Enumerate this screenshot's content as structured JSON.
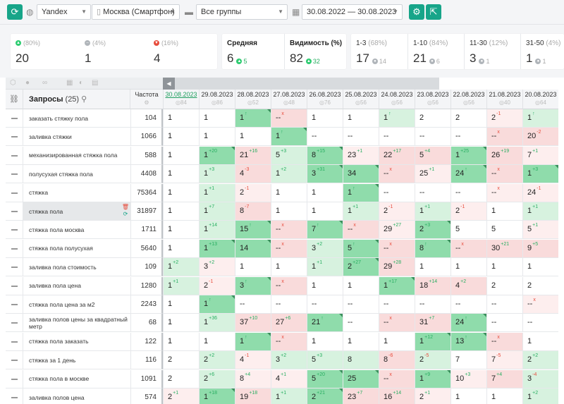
{
  "toolbar": {
    "engine": "Yandex",
    "region": "Москва (Смартфон)",
    "group": "Все группы",
    "date_range": "30.08.2022 — 30.08.2023"
  },
  "stats": {
    "top": [
      {
        "pct": "(80%)",
        "value": "20",
        "icon": "up-green-icon"
      },
      {
        "pct": "(4%)",
        "value": "1",
        "icon": "neutral-grey-icon"
      },
      {
        "pct": "(16%)",
        "value": "4",
        "icon": "down-red-icon"
      }
    ],
    "average": {
      "label": "Средняя",
      "value": "6",
      "delta": "5"
    },
    "visibility": {
      "label": "Видимость (%)",
      "value": "82",
      "delta": "32"
    },
    "positions": [
      {
        "label": "1-3",
        "pct": "(68%)",
        "value": "17",
        "delta": "14"
      },
      {
        "label": "1-10",
        "pct": "(84%)",
        "value": "21",
        "delta": "6"
      },
      {
        "label": "11-30",
        "pct": "(12%)",
        "value": "3",
        "delta": "1"
      },
      {
        "label": "31-50",
        "pct": "(4%)",
        "value": "1",
        "delta": "1"
      }
    ]
  },
  "table": {
    "header": {
      "queries_label": "Запросы",
      "queries_count": "(25)",
      "freq_label": "Частота"
    },
    "dates": [
      {
        "date": "30.08.2023",
        "vis": "84"
      },
      {
        "date": "29.08.2023",
        "vis": "86"
      },
      {
        "date": "28.08.2023",
        "vis": "52"
      },
      {
        "date": "27.08.2023",
        "vis": "48"
      },
      {
        "date": "26.08.2023",
        "vis": "76"
      },
      {
        "date": "25.08.2023",
        "vis": "56"
      },
      {
        "date": "24.08.2023",
        "vis": "56"
      },
      {
        "date": "23.08.2023",
        "vis": "56"
      },
      {
        "date": "22.08.2023",
        "vis": "56"
      },
      {
        "date": "21.08.2023",
        "vis": "40"
      },
      {
        "date": "20.08.2023",
        "vis": "64"
      }
    ],
    "rows": [
      {
        "q": "заказать стяжку пола",
        "f": "104",
        "cells": [
          [
            "1",
            "",
            "wh"
          ],
          [
            "1",
            "",
            "wh"
          ],
          [
            "1",
            "↑",
            "g1"
          ],
          [
            "--",
            "x",
            "r1"
          ],
          [
            "1",
            "",
            "wh"
          ],
          [
            "1",
            "",
            "wh"
          ],
          [
            "1",
            "↑",
            "g2"
          ],
          [
            "2",
            "",
            "wh"
          ],
          [
            "2",
            "",
            "wh"
          ],
          [
            "2",
            "-1",
            "r2"
          ],
          [
            "1",
            "↑",
            "g2"
          ]
        ]
      },
      {
        "q": "заливка стяжки",
        "f": "1066",
        "cells": [
          [
            "1",
            "",
            "wh"
          ],
          [
            "1",
            "",
            "wh"
          ],
          [
            "1",
            "",
            "wh"
          ],
          [
            "1",
            "↑",
            "g1"
          ],
          [
            "--",
            "",
            "wh"
          ],
          [
            "--",
            "",
            "wh"
          ],
          [
            "--",
            "",
            "wh"
          ],
          [
            "--",
            "",
            "wh"
          ],
          [
            "--",
            "",
            "wh"
          ],
          [
            "--",
            "x",
            "r1"
          ],
          [
            "20",
            "-2",
            "r1"
          ]
        ]
      },
      {
        "q": "механизированная стяжка пола",
        "f": "588",
        "cells": [
          [
            "1",
            "",
            "wh"
          ],
          [
            "1",
            "+20",
            "g1"
          ],
          [
            "21",
            "+16",
            "r1"
          ],
          [
            "5",
            "+3",
            "g2"
          ],
          [
            "8",
            "+15",
            "g1"
          ],
          [
            "23",
            "+1",
            "r2"
          ],
          [
            "22",
            "+17",
            "r1"
          ],
          [
            "5",
            "+4",
            "r1"
          ],
          [
            "1",
            "+25",
            "g1"
          ],
          [
            "26",
            "+19",
            "r1"
          ],
          [
            "7",
            "+1",
            "r2"
          ]
        ]
      },
      {
        "q": "полусухая стяжка пола",
        "f": "4408",
        "cells": [
          [
            "1",
            "",
            "wh"
          ],
          [
            "1",
            "+3",
            "g2"
          ],
          [
            "4",
            "-3",
            "r1"
          ],
          [
            "1",
            "+2",
            "g2"
          ],
          [
            "3",
            "+31",
            "g1"
          ],
          [
            "34",
            "",
            "g1"
          ],
          [
            "--",
            "x",
            "r1"
          ],
          [
            "25",
            "+1",
            "r2"
          ],
          [
            "24",
            "↑",
            "g1"
          ],
          [
            "--",
            "x",
            "r1"
          ],
          [
            "1",
            "+3",
            "g1"
          ]
        ]
      },
      {
        "q": "стяжка",
        "f": "75364",
        "cells": [
          [
            "1",
            "",
            "wh"
          ],
          [
            "1",
            "+1",
            "g2"
          ],
          [
            "2",
            "-1",
            "r2"
          ],
          [
            "1",
            "",
            "wh"
          ],
          [
            "1",
            "",
            "wh"
          ],
          [
            "1",
            "↑",
            "g1"
          ],
          [
            "--",
            "",
            "wh"
          ],
          [
            "--",
            "",
            "wh"
          ],
          [
            "--",
            "",
            "wh"
          ],
          [
            "--",
            "x",
            "r2"
          ],
          [
            "24",
            "-1",
            "r2"
          ]
        ]
      },
      {
        "q": "стяжка пола",
        "f": "31897",
        "sel": true,
        "cells": [
          [
            "1",
            "",
            "wh"
          ],
          [
            "1",
            "+7",
            "g2"
          ],
          [
            "8",
            "-7",
            "r1"
          ],
          [
            "1",
            "",
            "wh"
          ],
          [
            "1",
            "",
            "wh"
          ],
          [
            "1",
            "+1",
            "g2"
          ],
          [
            "2",
            "-1",
            "r2"
          ],
          [
            "1",
            "+1",
            "g2"
          ],
          [
            "2",
            "-1",
            "r2"
          ],
          [
            "1",
            "",
            "wh"
          ],
          [
            "1",
            "+1",
            "g2"
          ]
        ]
      },
      {
        "q": "стяжка пола москва",
        "f": "1711",
        "cells": [
          [
            "1",
            "",
            "wh"
          ],
          [
            "1",
            "+14",
            "g2"
          ],
          [
            "15",
            "↑",
            "g1"
          ],
          [
            "--",
            "x",
            "r1"
          ],
          [
            "7",
            "↑",
            "g1"
          ],
          [
            "--",
            "x",
            "r1"
          ],
          [
            "29",
            "+27",
            "r2"
          ],
          [
            "2",
            "+3",
            "g1"
          ],
          [
            "5",
            "",
            "wh"
          ],
          [
            "5",
            "",
            "wh"
          ],
          [
            "5",
            "+1",
            "r2"
          ]
        ]
      },
      {
        "q": "стяжка пола полусухая",
        "f": "5640",
        "cells": [
          [
            "1",
            "",
            "wh"
          ],
          [
            "1",
            "+13",
            "g1"
          ],
          [
            "14",
            "",
            "g1"
          ],
          [
            "--",
            "x",
            "r1"
          ],
          [
            "3",
            "+2",
            "g2"
          ],
          [
            "5",
            "↑",
            "g1"
          ],
          [
            "--",
            "x",
            "r1"
          ],
          [
            "8",
            "↑",
            "g1"
          ],
          [
            "--",
            "x",
            "r1"
          ],
          [
            "30",
            "+21",
            "r1"
          ],
          [
            "9",
            "+5",
            "r1"
          ]
        ]
      },
      {
        "q": "заливка пола стоимость",
        "f": "109",
        "cells": [
          [
            "1",
            "+2",
            "g2"
          ],
          [
            "3",
            "+2",
            "r2"
          ],
          [
            "1",
            "",
            "wh"
          ],
          [
            "1",
            "",
            "wh"
          ],
          [
            "1",
            "+1",
            "g2"
          ],
          [
            "2",
            "+27",
            "g1"
          ],
          [
            "29",
            "+28",
            "r1"
          ],
          [
            "1",
            "",
            "wh"
          ],
          [
            "1",
            "",
            "wh"
          ],
          [
            "1",
            "",
            "wh"
          ],
          [
            "1",
            "",
            "wh"
          ]
        ]
      },
      {
        "q": "заливка пола цена",
        "f": "1280",
        "cells": [
          [
            "1",
            "+1",
            "g2"
          ],
          [
            "2",
            "-1",
            "r2"
          ],
          [
            "3",
            "↑",
            "g1"
          ],
          [
            "--",
            "x",
            "r1"
          ],
          [
            "1",
            "",
            "wh"
          ],
          [
            "1",
            "",
            "wh"
          ],
          [
            "1",
            "+17",
            "g1"
          ],
          [
            "18",
            "+14",
            "r1"
          ],
          [
            "4",
            "+2",
            "r1"
          ],
          [
            "2",
            "",
            "wh"
          ],
          [
            "2",
            "",
            "wh"
          ]
        ]
      },
      {
        "q": "стяжка пола цена за м2",
        "f": "2243",
        "cells": [
          [
            "1",
            "",
            "wh"
          ],
          [
            "1",
            "↑",
            "g1"
          ],
          [
            "--",
            "",
            "wh"
          ],
          [
            "--",
            "",
            "wh"
          ],
          [
            "--",
            "",
            "wh"
          ],
          [
            "--",
            "",
            "wh"
          ],
          [
            "--",
            "",
            "wh"
          ],
          [
            "--",
            "",
            "wh"
          ],
          [
            "--",
            "",
            "wh"
          ],
          [
            "--",
            "",
            "wh"
          ],
          [
            "--",
            "x",
            "r2"
          ]
        ]
      },
      {
        "q": "заливка полов цены за квадратный метр",
        "f": "68",
        "cells": [
          [
            "1",
            "",
            "wh"
          ],
          [
            "1",
            "+36",
            "g2"
          ],
          [
            "37",
            "+10",
            "r1"
          ],
          [
            "27",
            "+6",
            "r1"
          ],
          [
            "21",
            "↑",
            "g1"
          ],
          [
            "--",
            "",
            "wh"
          ],
          [
            "--",
            "x",
            "r1"
          ],
          [
            "31",
            "+7",
            "r1"
          ],
          [
            "24",
            "↑",
            "g1"
          ],
          [
            "--",
            "",
            "wh"
          ],
          [
            "--",
            "",
            "wh"
          ]
        ]
      },
      {
        "q": "стяжка пола заказать",
        "f": "122",
        "cells": [
          [
            "1",
            "",
            "wh"
          ],
          [
            "1",
            "",
            "wh"
          ],
          [
            "1",
            "↑",
            "g1"
          ],
          [
            "--",
            "x",
            "r1"
          ],
          [
            "1",
            "",
            "wh"
          ],
          [
            "1",
            "",
            "wh"
          ],
          [
            "1",
            "",
            "wh"
          ],
          [
            "1",
            "+12",
            "g1"
          ],
          [
            "13",
            "↑",
            "g1"
          ],
          [
            "--",
            "x",
            "r1"
          ],
          [
            "1",
            "",
            "wh"
          ]
        ]
      },
      {
        "q": "стяжка за 1 день",
        "f": "116",
        "cells": [
          [
            "2",
            "",
            "wh"
          ],
          [
            "2",
            "+2",
            "g2"
          ],
          [
            "4",
            "-1",
            "r2"
          ],
          [
            "3",
            "+2",
            "g2"
          ],
          [
            "5",
            "+3",
            "g2"
          ],
          [
            "8",
            "",
            "g2"
          ],
          [
            "8",
            "-6",
            "r1"
          ],
          [
            "2",
            "-5",
            "g2"
          ],
          [
            "7",
            "",
            "wh"
          ],
          [
            "7",
            "-5",
            "r2"
          ],
          [
            "2",
            "+2",
            "g2"
          ]
        ]
      },
      {
        "q": "стяжка пола в москве",
        "f": "1091",
        "cells": [
          [
            "2",
            "",
            "wh"
          ],
          [
            "2",
            "+6",
            "g2"
          ],
          [
            "8",
            "+4",
            "r2"
          ],
          [
            "4",
            "+1",
            "r2"
          ],
          [
            "5",
            "+20",
            "g1"
          ],
          [
            "25",
            "",
            "g1"
          ],
          [
            "--",
            "x",
            "r1"
          ],
          [
            "1",
            "+9",
            "g1"
          ],
          [
            "10",
            "+3",
            "r2"
          ],
          [
            "7",
            "+4",
            "r1"
          ],
          [
            "3",
            "-4",
            "g2"
          ]
        ]
      },
      {
        "q": "заливка полов цена",
        "f": "574",
        "cells": [
          [
            "2",
            "+1",
            "r2"
          ],
          [
            "1",
            "+18",
            "g1"
          ],
          [
            "19",
            "+18",
            "r1"
          ],
          [
            "1",
            "+1",
            "g2"
          ],
          [
            "2",
            "+21",
            "g1"
          ],
          [
            "23",
            "+7",
            "r1"
          ],
          [
            "16",
            "+14",
            "r1"
          ],
          [
            "2",
            "+1",
            "r2"
          ],
          [
            "1",
            "",
            "wh"
          ],
          [
            "1",
            "",
            "wh"
          ],
          [
            "1",
            "+2",
            "g2"
          ]
        ]
      }
    ]
  }
}
